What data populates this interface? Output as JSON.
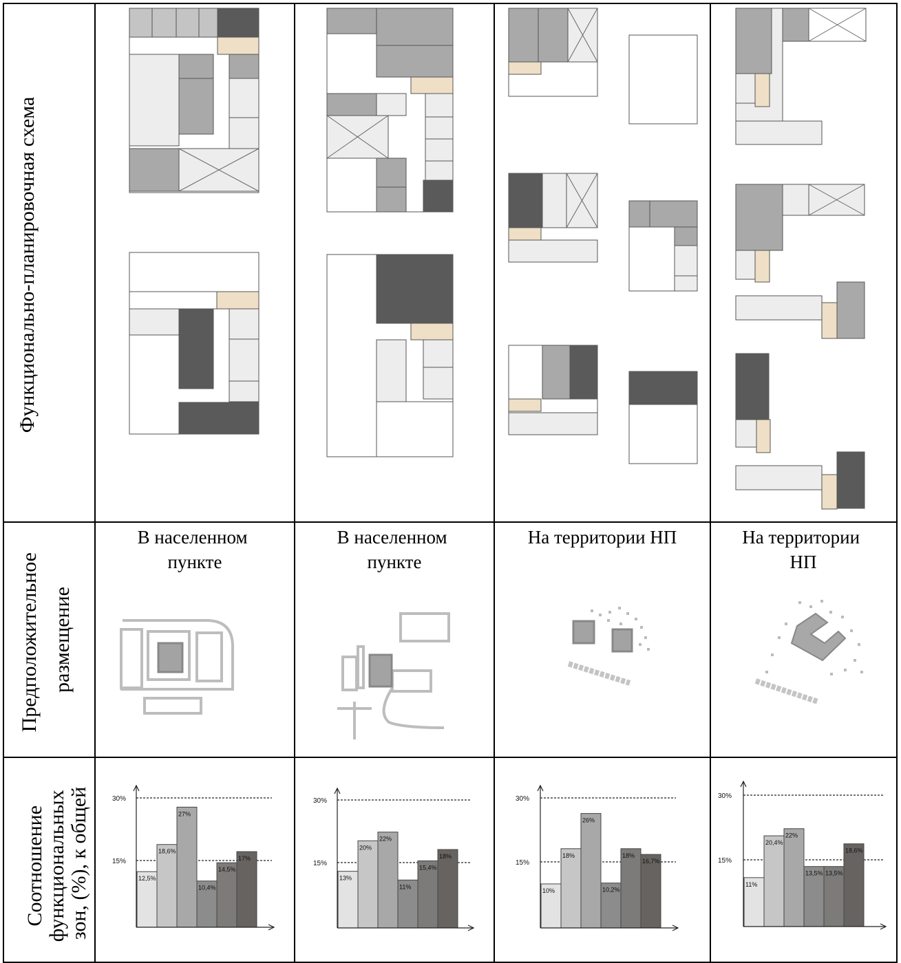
{
  "table": {
    "row_headers": [
      [
        "Функционально-планировочная схема"
      ],
      [
        "Предположительное",
        "размещение"
      ],
      [
        "Соотношение",
        "функциональных",
        "зон, (%), к общей"
      ]
    ],
    "placements": [
      [
        "В населенном",
        "пункте"
      ],
      [
        "В населенном",
        "пункте"
      ],
      [
        "На территории НП"
      ],
      [
        "На территории",
        "НП"
      ]
    ]
  },
  "colors": {
    "border": "#000000",
    "zone_light": "#ededed",
    "zone_mid": "#c4c4c4",
    "zone_grey": "#a9a9a9",
    "zone_dark": "#5a5a5a",
    "zone_beige": "#eedfc6",
    "bars": [
      "#e3e3e3",
      "#c6c6c6",
      "#a8a8a8",
      "#8c8c8c",
      "#7d7b79",
      "#676360"
    ]
  },
  "chart_data": [
    {
      "type": "bar",
      "ref_lines": [
        "30%",
        "15%"
      ],
      "values": [
        12.5,
        18.6,
        27,
        10.4,
        14.5,
        17
      ],
      "labels": [
        "12,5%",
        "18,6%",
        "27%",
        "10,4%",
        "14,5%",
        "17%"
      ]
    },
    {
      "type": "bar",
      "ref_lines": [
        "30%",
        "15%"
      ],
      "values": [
        13,
        20,
        22,
        11,
        15.4,
        18
      ],
      "labels": [
        "13%",
        "20%",
        "22%",
        "11%",
        "15,4%",
        "18%"
      ]
    },
    {
      "type": "bar",
      "ref_lines": [
        "30%",
        "15%"
      ],
      "values": [
        10,
        18,
        26,
        10.2,
        18,
        16.7
      ],
      "labels": [
        "10%",
        "18%",
        "26%",
        "10,2%",
        "18%",
        "16,7%"
      ]
    },
    {
      "type": "bar",
      "ref_lines": [
        "30%",
        "15%"
      ],
      "values": [
        11,
        20.4,
        22,
        13.5,
        13.5,
        18.6
      ],
      "labels": [
        "11%",
        "20,4%",
        "22%",
        "13,5%",
        "13,5%",
        "18,6%"
      ]
    }
  ]
}
